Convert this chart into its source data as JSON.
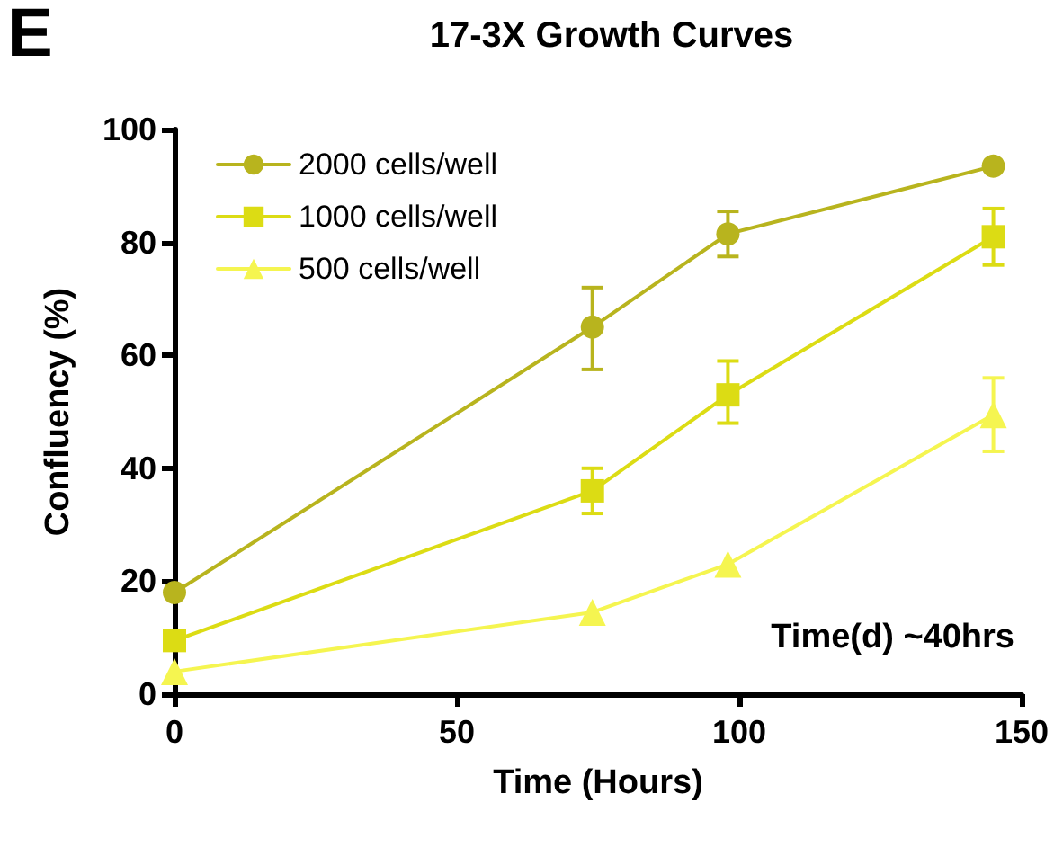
{
  "chart_data": {
    "type": "line",
    "title": "17-3X Growth Curves",
    "xlabel": "Time (Hours)",
    "ylabel": "Confluency (%)",
    "annotations": [
      "E",
      "Time(d) ~40hrs"
    ],
    "x": [
      0,
      74,
      98,
      145
    ],
    "series": [
      {
        "name": "2000 cells/well",
        "color": "#b8b41e",
        "marker": "circle",
        "values": [
          18,
          65,
          81.5,
          93.5
        ],
        "errors": [
          null,
          [
            57.5,
            72
          ],
          [
            77.5,
            85.5
          ],
          null
        ]
      },
      {
        "name": "1000 cells/well",
        "color": "#dcdc14",
        "marker": "square",
        "values": [
          9.5,
          36,
          53,
          81
        ],
        "errors": [
          null,
          [
            32,
            40
          ],
          [
            48,
            59
          ],
          [
            76,
            86
          ]
        ]
      },
      {
        "name": "500 cells/well",
        "color": "#f5f550",
        "marker": "triangle",
        "values": [
          4,
          14.5,
          23,
          49.5
        ],
        "errors": [
          null,
          null,
          null,
          [
            43,
            56
          ]
        ]
      }
    ],
    "xlim": [
      0,
      150
    ],
    "xticks": [
      0,
      50,
      100,
      150
    ],
    "ylim": [
      0,
      100
    ],
    "yticks": [
      0,
      20,
      40,
      60,
      80,
      100
    ],
    "grid": false,
    "legend": "top left",
    "line_style": "solid"
  }
}
